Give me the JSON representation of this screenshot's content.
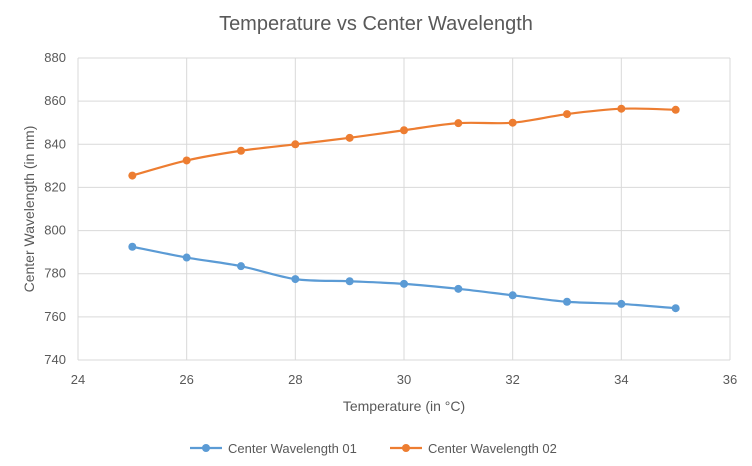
{
  "chart_data": {
    "type": "scatter",
    "title": "Temperature vs Center Wavelength",
    "xlabel": "Temperature (in °C)",
    "ylabel": "Center Wavelength (in nm)",
    "xlim": [
      24,
      36
    ],
    "ylim": [
      740,
      880
    ],
    "xticks": [
      24,
      26,
      28,
      30,
      32,
      34,
      36
    ],
    "yticks": [
      740,
      760,
      780,
      800,
      820,
      840,
      860,
      880
    ],
    "grid": true,
    "legend_position": "bottom",
    "series": [
      {
        "name": "Center Wavelength 01",
        "color": "#5B9BD5",
        "x": [
          25,
          26,
          27,
          28,
          29,
          30,
          31,
          32,
          33,
          34,
          35
        ],
        "y": [
          792.5,
          787.5,
          783.5,
          777.5,
          776.5,
          775.3,
          773,
          770,
          767,
          766,
          764
        ]
      },
      {
        "name": "Center Wavelength 02",
        "color": "#ED7D31",
        "x": [
          25,
          26,
          27,
          28,
          29,
          30,
          31,
          32,
          33,
          34,
          35
        ],
        "y": [
          825.5,
          832.5,
          837,
          840,
          843,
          846.5,
          849.8,
          850,
          854,
          856.5,
          856
        ]
      }
    ]
  }
}
